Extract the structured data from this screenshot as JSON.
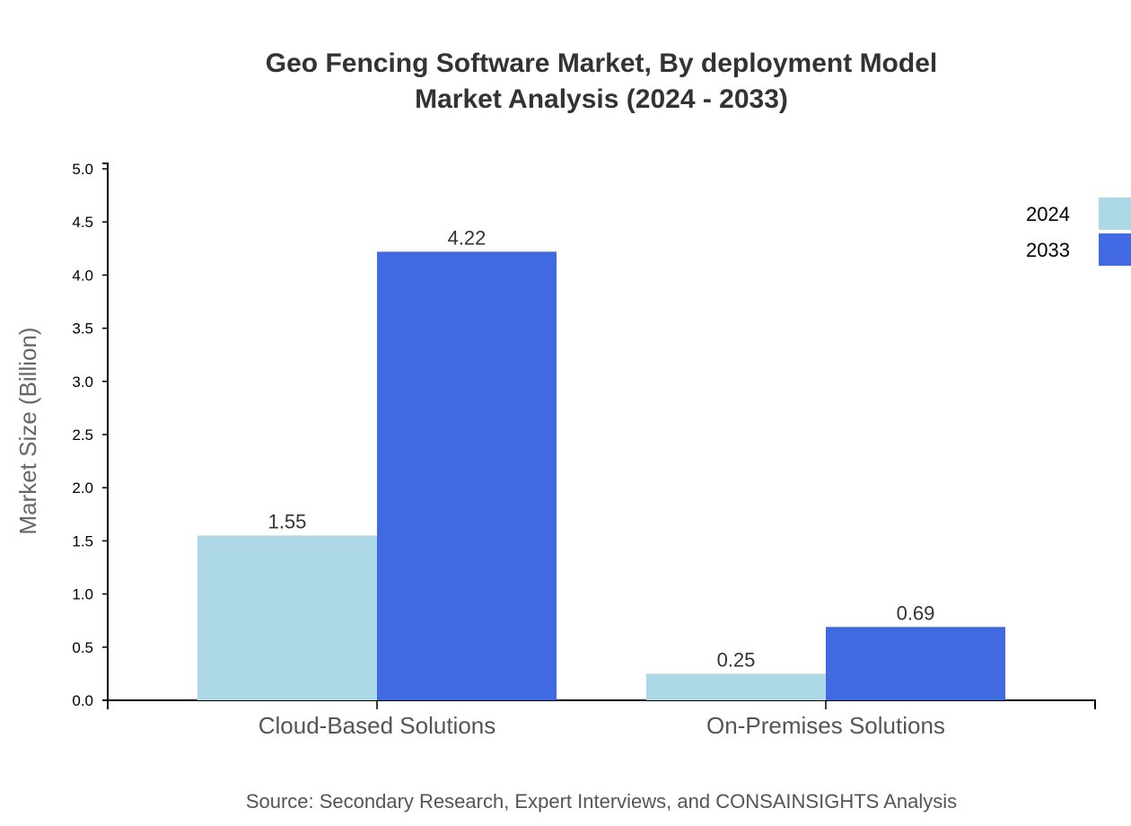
{
  "chart_data": {
    "type": "bar",
    "title_line1": "Geo Fencing Software Market, By deployment Model",
    "title_line2": "Market Analysis (2024 - 2033)",
    "xlabel": "",
    "ylabel": "Market Size (Billion)",
    "ylim": [
      0,
      5.0
    ],
    "yticks": [
      "0.0",
      "0.5",
      "1.0",
      "1.5",
      "2.0",
      "2.5",
      "3.0",
      "3.5",
      "4.0",
      "4.5",
      "5.0"
    ],
    "categories": [
      "Cloud-Based Solutions",
      "On-Premises Solutions"
    ],
    "series": [
      {
        "name": "2024",
        "color": "#ADD8E6",
        "values": [
          1.55,
          0.25
        ]
      },
      {
        "name": "2033",
        "color": "#4169E1",
        "values": [
          4.22,
          0.69
        ]
      }
    ],
    "grid": false,
    "legend_position": "top-right",
    "source": "Source: Secondary Research, Expert Interviews, and CONSAINSIGHTS Analysis"
  }
}
